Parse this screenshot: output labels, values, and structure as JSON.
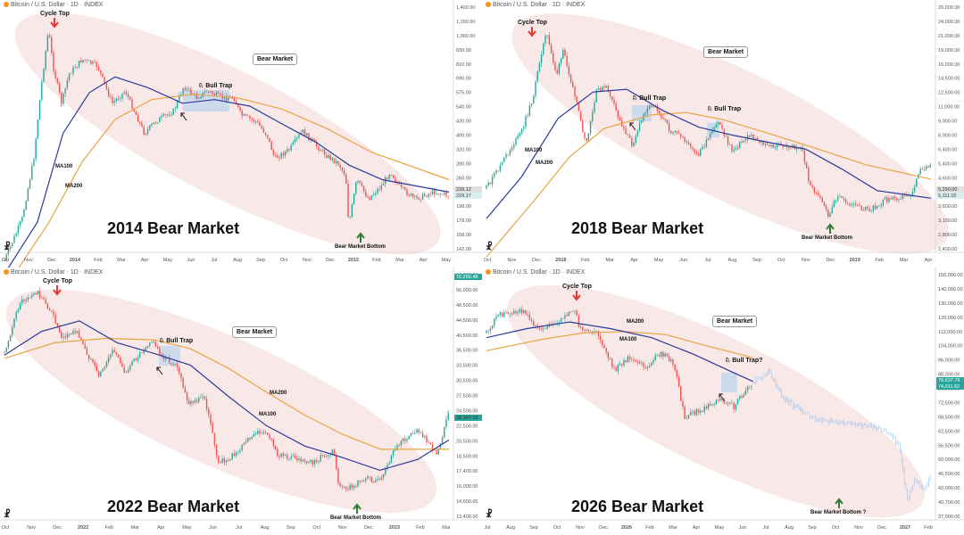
{
  "colors": {
    "ma100": "#2b3a9a",
    "ma200": "#e8a440",
    "up": "#26a69a",
    "down": "#ef5350",
    "arrow_red": "#e53935",
    "arrow_green": "#2e7d32",
    "ellipse": "#f3d9d9",
    "trap": "#a9cdf0"
  },
  "chart_data": [
    {
      "type": "line",
      "header": "Bitcoin / U.S. Dollar · 1D · INDEX",
      "title": "2014 Bear Market",
      "x_ticks": [
        "Oct",
        "Nov",
        "Dec",
        "2014",
        "Feb",
        "Mar",
        "Apr",
        "May",
        "Jun",
        "Jul",
        "Aug",
        "Sep",
        "Oct",
        "Nov",
        "Dec",
        "2015",
        "Feb",
        "Mar",
        "Apr",
        "May"
      ],
      "y_ticks": [
        "1,400.00",
        "1,200.00",
        "1,000.00",
        "830.00",
        "810.00",
        "690.00",
        "575.00",
        "540.00",
        "430.00",
        "400.00",
        "320.00",
        "280.00",
        "260.00",
        "220.00",
        "198.00",
        "178.00",
        "158.00",
        "142.00"
      ],
      "y_scale": "log",
      "price_tags": [
        "239.12",
        "229.17"
      ],
      "labels": {
        "cycle_top": "Cycle Top",
        "bull_trap": "Bull Trap",
        "bear_market": "Bear Market",
        "bottom": "Bear Market Bottom",
        "ma100": "MA100",
        "ma200": "MA200"
      },
      "price": [
        [
          "2013-10-01",
          125
        ],
        [
          "2013-10-25",
          185
        ],
        [
          "2013-11-10",
          330
        ],
        [
          "2013-11-20",
          650
        ],
        [
          "2013-11-30",
          1130
        ],
        [
          "2013-12-07",
          780
        ],
        [
          "2013-12-18",
          560
        ],
        [
          "2013-12-28",
          740
        ],
        [
          "2014-01-15",
          850
        ],
        [
          "2014-02-05",
          800
        ],
        [
          "2014-02-25",
          560
        ],
        [
          "2014-03-15",
          630
        ],
        [
          "2014-04-10",
          420
        ],
        [
          "2014-04-25",
          470
        ],
        [
          "2014-05-20",
          520
        ],
        [
          "2014-06-03",
          660
        ],
        [
          "2014-06-20",
          590
        ],
        [
          "2014-07-05",
          630
        ],
        [
          "2014-07-25",
          590
        ],
        [
          "2014-08-10",
          590
        ],
        [
          "2014-08-20",
          500
        ],
        [
          "2014-09-10",
          470
        ],
        [
          "2014-09-25",
          410
        ],
        [
          "2014-10-05",
          330
        ],
        [
          "2014-10-25",
          360
        ],
        [
          "2014-11-12",
          430
        ],
        [
          "2014-11-30",
          375
        ],
        [
          "2014-12-15",
          340
        ],
        [
          "2014-12-31",
          315
        ],
        [
          "2015-01-10",
          280
        ],
        [
          "2015-01-14",
          175
        ],
        [
          "2015-01-25",
          270
        ],
        [
          "2015-02-10",
          225
        ],
        [
          "2015-02-28",
          255
        ],
        [
          "2015-03-12",
          292
        ],
        [
          "2015-03-25",
          250
        ],
        [
          "2015-04-15",
          225
        ],
        [
          "2015-05-10",
          240
        ],
        [
          "2015-05-31",
          232
        ]
      ],
      "ma100": [
        [
          "2013-10-01",
          110
        ],
        [
          "2013-11-15",
          180
        ],
        [
          "2013-12-20",
          420
        ],
        [
          "2014-01-25",
          620
        ],
        [
          "2014-03-01",
          720
        ],
        [
          "2014-04-15",
          650
        ],
        [
          "2014-06-01",
          560
        ],
        [
          "2014-07-15",
          580
        ],
        [
          "2014-09-01",
          545
        ],
        [
          "2014-10-15",
          460
        ],
        [
          "2014-12-01",
          385
        ],
        [
          "2015-01-15",
          310
        ],
        [
          "2015-03-01",
          270
        ],
        [
          "2015-05-31",
          240
        ]
      ],
      "ma200": [
        [
          "2013-10-01",
          95
        ],
        [
          "2013-12-01",
          180
        ],
        [
          "2014-01-15",
          320
        ],
        [
          "2014-03-01",
          480
        ],
        [
          "2014-04-20",
          580
        ],
        [
          "2014-06-15",
          610
        ],
        [
          "2014-08-15",
          590
        ],
        [
          "2014-10-15",
          530
        ],
        [
          "2014-12-15",
          440
        ],
        [
          "2015-02-15",
          350
        ],
        [
          "2015-05-31",
          270
        ]
      ]
    },
    {
      "type": "line",
      "header": "Bitcoin / U.S. Dollar · 1D · INDEX",
      "title": "2018 Bear Market",
      "x_ticks": [
        "Oct",
        "Nov",
        "Dec",
        "2018",
        "Feb",
        "Mar",
        "Apr",
        "May",
        "Jun",
        "Jul",
        "Aug",
        "Sep",
        "Oct",
        "Nov",
        "Dec",
        "2019",
        "Feb",
        "Mar",
        "Apr"
      ],
      "y_ticks": [
        "26,000.00",
        "24,000.00",
        "21,000.00",
        "19,000.00",
        "16,000.00",
        "14,500.00",
        "12,500.00",
        "11,000.00",
        "9,000.00",
        "8,000.00",
        "6,400.00",
        "5,400.00",
        "4,600.00",
        "4,000.00",
        "3,600.00",
        "3,100.00",
        "2,800.00",
        "2,400.00"
      ],
      "y_scale": "log",
      "price_tags": [
        "5,290.00",
        "5,111.02"
      ],
      "labels": {
        "cycle_top": "Cycle Top",
        "bull_trap_1": "Bull Trap",
        "bull_trap_2": "Bull Trap",
        "bear_market": "Bear Market",
        "bottom": "Bear Market Bottom",
        "ma100": "MA100",
        "ma200": "MA200"
      },
      "price": [
        [
          "2017-10-01",
          4300
        ],
        [
          "2017-10-25",
          5800
        ],
        [
          "2017-11-15",
          7500
        ],
        [
          "2017-11-30",
          10500
        ],
        [
          "2017-12-10",
          16000
        ],
        [
          "2017-12-17",
          19500
        ],
        [
          "2017-12-30",
          13000
        ],
        [
          "2018-01-08",
          16500
        ],
        [
          "2018-01-20",
          11500
        ],
        [
          "2018-02-06",
          6500
        ],
        [
          "2018-02-20",
          11300
        ],
        [
          "2018-03-05",
          11500
        ],
        [
          "2018-03-20",
          8500
        ],
        [
          "2018-04-06",
          6600
        ],
        [
          "2018-04-25",
          9500
        ],
        [
          "2018-05-05",
          9800
        ],
        [
          "2018-05-25",
          7500
        ],
        [
          "2018-06-10",
          7100
        ],
        [
          "2018-06-28",
          5900
        ],
        [
          "2018-07-10",
          6700
        ],
        [
          "2018-07-26",
          8300
        ],
        [
          "2018-08-12",
          6200
        ],
        [
          "2018-09-05",
          7300
        ],
        [
          "2018-09-25",
          6500
        ],
        [
          "2018-10-15",
          6500
        ],
        [
          "2018-11-10",
          6400
        ],
        [
          "2018-11-20",
          4500
        ],
        [
          "2018-12-05",
          3800
        ],
        [
          "2018-12-15",
          3250
        ],
        [
          "2018-12-25",
          4000
        ],
        [
          "2019-01-10",
          3700
        ],
        [
          "2019-02-05",
          3450
        ],
        [
          "2019-02-25",
          3850
        ],
        [
          "2019-03-15",
          3950
        ],
        [
          "2019-04-01",
          4100
        ],
        [
          "2019-04-10",
          5200
        ],
        [
          "2019-04-25",
          5300
        ]
      ],
      "ma100": [
        [
          "2017-10-01",
          3200
        ],
        [
          "2017-11-15",
          4800
        ],
        [
          "2018-01-01",
          8500
        ],
        [
          "2018-02-15",
          11000
        ],
        [
          "2018-03-30",
          11300
        ],
        [
          "2018-05-15",
          9200
        ],
        [
          "2018-07-01",
          7800
        ],
        [
          "2018-08-15",
          7200
        ],
        [
          "2018-10-01",
          6700
        ],
        [
          "2018-11-15",
          6300
        ],
        [
          "2018-12-31",
          5200
        ],
        [
          "2019-02-15",
          4200
        ],
        [
          "2019-04-25",
          3900
        ]
      ],
      "ma200": [
        [
          "2017-10-01",
          2200
        ],
        [
          "2017-12-01",
          3800
        ],
        [
          "2018-01-15",
          5800
        ],
        [
          "2018-03-01",
          7700
        ],
        [
          "2018-05-01",
          8800
        ],
        [
          "2018-06-15",
          9000
        ],
        [
          "2018-08-01",
          8400
        ],
        [
          "2018-10-01",
          7300
        ],
        [
          "2018-12-01",
          6300
        ],
        [
          "2019-02-01",
          5400
        ],
        [
          "2019-04-25",
          4700
        ]
      ]
    },
    {
      "type": "line",
      "header": "Bitcoin / U.S. Dollar · 1D · INDEX",
      "title": "2022 Bear Market",
      "x_ticks": [
        "Oct",
        "Nov",
        "Dec",
        "2022",
        "Feb",
        "Mar",
        "Apr",
        "May",
        "Jun",
        "Jul",
        "Aug",
        "Sep",
        "Oct",
        "Nov",
        "Dec",
        "2023",
        "Feb",
        "Mar"
      ],
      "y_ticks": [
        "64,000.00",
        "56,000.00",
        "48,500.00",
        "44,500.00",
        "40,500.00",
        "36,500.00",
        "33,500.00",
        "30,500.00",
        "27,500.00",
        "24,500.00",
        "22,500.00",
        "20,500.00",
        "18,500.00",
        "17,400.00",
        "16,000.00",
        "14,600.00",
        "13,400.00"
      ],
      "y_scale": "log",
      "price_tags": [
        "70,255.48",
        "28,347.18"
      ],
      "labels": {
        "cycle_top": "Cycle Top",
        "bull_trap": "Bull Trap",
        "bear_market": "Bear Market",
        "bottom": "Bear Market Bottom",
        "ma100": "MA100",
        "ma200": "MA200"
      },
      "price": [
        [
          "2021-10-01",
          43000
        ],
        [
          "2021-10-20",
          62000
        ],
        [
          "2021-11-10",
          67000
        ],
        [
          "2021-11-28",
          57000
        ],
        [
          "2021-12-10",
          48000
        ],
        [
          "2021-12-28",
          50000
        ],
        [
          "2022-01-10",
          42000
        ],
        [
          "2022-01-24",
          36000
        ],
        [
          "2022-02-10",
          44000
        ],
        [
          "2022-02-24",
          37000
        ],
        [
          "2022-03-28",
          47000
        ],
        [
          "2022-04-10",
          42000
        ],
        [
          "2022-04-30",
          38000
        ],
        [
          "2022-05-12",
          29000
        ],
        [
          "2022-06-01",
          31000
        ],
        [
          "2022-06-18",
          19000
        ],
        [
          "2022-07-05",
          20000
        ],
        [
          "2022-07-30",
          23500
        ],
        [
          "2022-08-15",
          24000
        ],
        [
          "2022-08-30",
          20000
        ],
        [
          "2022-09-15",
          20000
        ],
        [
          "2022-10-10",
          19000
        ],
        [
          "2022-11-05",
          21000
        ],
        [
          "2022-11-10",
          16500
        ],
        [
          "2022-11-22",
          15800
        ],
        [
          "2022-12-15",
          17000
        ],
        [
          "2023-01-01",
          16600
        ],
        [
          "2023-01-20",
          21500
        ],
        [
          "2023-02-15",
          24500
        ],
        [
          "2023-03-10",
          20000
        ],
        [
          "2023-03-25",
          28000
        ]
      ],
      "ma100": [
        [
          "2021-10-01",
          42000
        ],
        [
          "2021-11-15",
          50000
        ],
        [
          "2021-12-31",
          54000
        ],
        [
          "2022-02-15",
          46000
        ],
        [
          "2022-04-01",
          42500
        ],
        [
          "2022-05-15",
          39000
        ],
        [
          "2022-06-30",
          31000
        ],
        [
          "2022-08-15",
          25000
        ],
        [
          "2022-10-01",
          21500
        ],
        [
          "2022-11-15",
          19800
        ],
        [
          "2022-12-31",
          18000
        ],
        [
          "2023-02-15",
          19500
        ],
        [
          "2023-03-25",
          22500
        ]
      ],
      "ma200": [
        [
          "2021-10-01",
          41000
        ],
        [
          "2021-12-01",
          46000
        ],
        [
          "2022-02-01",
          47500
        ],
        [
          "2022-04-01",
          47000
        ],
        [
          "2022-05-15",
          44000
        ],
        [
          "2022-07-01",
          38000
        ],
        [
          "2022-08-15",
          32000
        ],
        [
          "2022-10-01",
          27000
        ],
        [
          "2022-11-15",
          23500
        ],
        [
          "2023-01-01",
          21000
        ],
        [
          "2023-03-25",
          21000
        ]
      ]
    },
    {
      "type": "line",
      "header": "Bitcoin / U.S. Dollar · 1D · INDEX",
      "title": "2026 Bear Market",
      "x_ticks": [
        "Jul",
        "Aug",
        "Sep",
        "Oct",
        "Nov",
        "Dec",
        "2026",
        "Feb",
        "Mar",
        "Apr",
        "May",
        "Jun",
        "Jul",
        "Aug",
        "Sep",
        "Oct",
        "Nov",
        "Dec",
        "2027",
        "Feb"
      ],
      "y_ticks": [
        "150,000.00",
        "140,000.00",
        "130,000.00",
        "120,000.00",
        "112,000.00",
        "104,000.00",
        "96,000.00",
        "88,000.00",
        "80,000.00",
        "72,500.00",
        "68,500.00",
        "62,500.00",
        "56,500.00",
        "50,000.00",
        "46,500.00",
        "43,000.00",
        "40,700.00",
        "37,000.00"
      ],
      "y_scale": "log",
      "price_tags": [
        "78,637.79",
        "74,011.62"
      ],
      "labels": {
        "cycle_top": "Cycle Top",
        "bull_trap": "Bull Trap?",
        "bear_market": "Bear Market",
        "bottom": "Bear Market Bottom ?",
        "ma100": "MA100",
        "ma200": "MA200"
      },
      "price": [
        [
          "2025-07-01",
          107000
        ],
        [
          "2025-07-15",
          120000
        ],
        [
          "2025-08-10",
          122000
        ],
        [
          "2025-08-28",
          109000
        ],
        [
          "2025-09-20",
          115000
        ],
        [
          "2025-10-06",
          125000
        ],
        [
          "2025-10-12",
          110000
        ],
        [
          "2025-10-30",
          108000
        ],
        [
          "2025-11-20",
          85000
        ],
        [
          "2025-12-05",
          92000
        ],
        [
          "2025-12-25",
          87000
        ],
        [
          "2026-01-10",
          95000
        ],
        [
          "2026-01-25",
          88000
        ],
        [
          "2026-02-05",
          64000
        ],
        [
          "2026-02-25",
          67000
        ],
        [
          "2026-03-15",
          71000
        ],
        [
          "2026-04-01",
          68000
        ],
        [
          "2026-04-15",
          76000
        ],
        [
          "2026-04-22",
          78600
        ]
      ],
      "projection": [
        [
          "2026-04-22",
          78600
        ],
        [
          "2026-05-10",
          84000
        ],
        [
          "2026-05-25",
          72000
        ],
        [
          "2026-06-15",
          66000
        ],
        [
          "2026-07-05",
          63000
        ],
        [
          "2026-07-25",
          62000
        ],
        [
          "2026-08-15",
          61000
        ],
        [
          "2026-09-05",
          60000
        ],
        [
          "2026-09-20",
          58000
        ],
        [
          "2026-10-01",
          53000
        ],
        [
          "2026-10-10",
          38000
        ],
        [
          "2026-10-18",
          44000
        ],
        [
          "2026-10-28",
          41000
        ],
        [
          "2026-11-05",
          45000
        ]
      ],
      "ma100": [
        [
          "2025-07-01",
          104000
        ],
        [
          "2025-08-15",
          110000
        ],
        [
          "2025-10-01",
          114500
        ],
        [
          "2025-11-15",
          110000
        ],
        [
          "2025-12-31",
          104000
        ],
        [
          "2026-02-15",
          94000
        ],
        [
          "2026-03-31",
          84000
        ],
        [
          "2026-04-22",
          79500
        ]
      ],
      "ma200": [
        [
          "2025-07-01",
          96000
        ],
        [
          "2025-09-01",
          103000
        ],
        [
          "2025-10-15",
          107000
        ],
        [
          "2025-12-01",
          108000
        ],
        [
          "2026-01-15",
          106000
        ],
        [
          "2026-03-01",
          99000
        ],
        [
          "2026-04-22",
          92000
        ]
      ]
    }
  ]
}
